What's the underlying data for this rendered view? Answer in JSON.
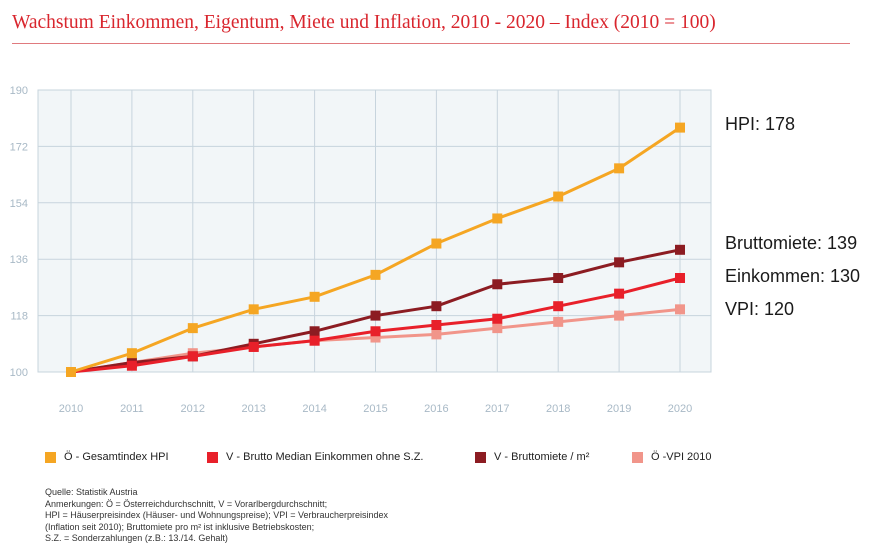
{
  "title": "Wachstum Einkommen, Eigentum, Miete und Inflation, 2010 - 2020 – Index (2010 = 100)",
  "colors": {
    "title": "#d9262e",
    "plot_bg": "#f2f6f8",
    "grid": "#c7d4dd",
    "hpi": "#f5a623",
    "einkommen": "#e8202a",
    "miete": "#8c1c22",
    "vpi": "#f1958a"
  },
  "end_labels": [
    {
      "text": "HPI: 178",
      "series": 0
    },
    {
      "text": "Bruttomiete: 139",
      "series": 2
    },
    {
      "text": "Einkommen: 130",
      "series": 1
    },
    {
      "text": "VPI: 120",
      "series": 3
    }
  ],
  "legend": [
    {
      "label": "Ö - Gesamtindex HPI",
      "color": "#f5a623"
    },
    {
      "label": "V - Brutto Median Einkommen ohne S.Z.",
      "color": "#e8202a"
    },
    {
      "label": "V - Bruttomiete / m²",
      "color": "#8c1c22"
    },
    {
      "label": "Ö -VPI 2010",
      "color": "#f1958a"
    }
  ],
  "notes": [
    "Quelle: Statistik Austria",
    "Anmerkungen: Ö = Österreichdurchschnitt, V = Vorarlbergdurchschnitt;",
    "HPI = Häuserpreisindex (Häuser- und Wohnungspreise); VPI = Verbraucherpreisindex",
    "(Inflation seit 2010); Bruttomiete pro m² ist inklusive Betriebskosten;",
    "S.Z. = Sonderzahlungen (z.B.: 13./14. Gehalt)"
  ],
  "chart_data": {
    "type": "line",
    "x": [
      "2010",
      "2011",
      "2012",
      "2013",
      "2014",
      "2015",
      "2016",
      "2017",
      "2018",
      "2019",
      "2020"
    ],
    "ylim": [
      100,
      190
    ],
    "yticks": [
      100,
      118,
      136,
      154,
      172,
      190
    ],
    "grid": true,
    "series": [
      {
        "name": "Ö - Gesamtindex HPI",
        "color": "#f5a623",
        "values": [
          100,
          106,
          114,
          120,
          124,
          131,
          141,
          149,
          156,
          165,
          178
        ]
      },
      {
        "name": "V - Brutto Median Einkommen ohne S.Z.",
        "color": "#e8202a",
        "values": [
          100,
          102,
          105,
          108,
          110,
          113,
          115,
          117,
          121,
          125,
          130
        ]
      },
      {
        "name": "V - Bruttomiete / m²",
        "color": "#8c1c22",
        "values": [
          100,
          103,
          105,
          109,
          113,
          118,
          121,
          128,
          130,
          135,
          139
        ]
      },
      {
        "name": "Ö -VPI 2010",
        "color": "#f1958a",
        "values": [
          100,
          103,
          106,
          108,
          110,
          111,
          112,
          114,
          116,
          118,
          120
        ]
      }
    ]
  }
}
